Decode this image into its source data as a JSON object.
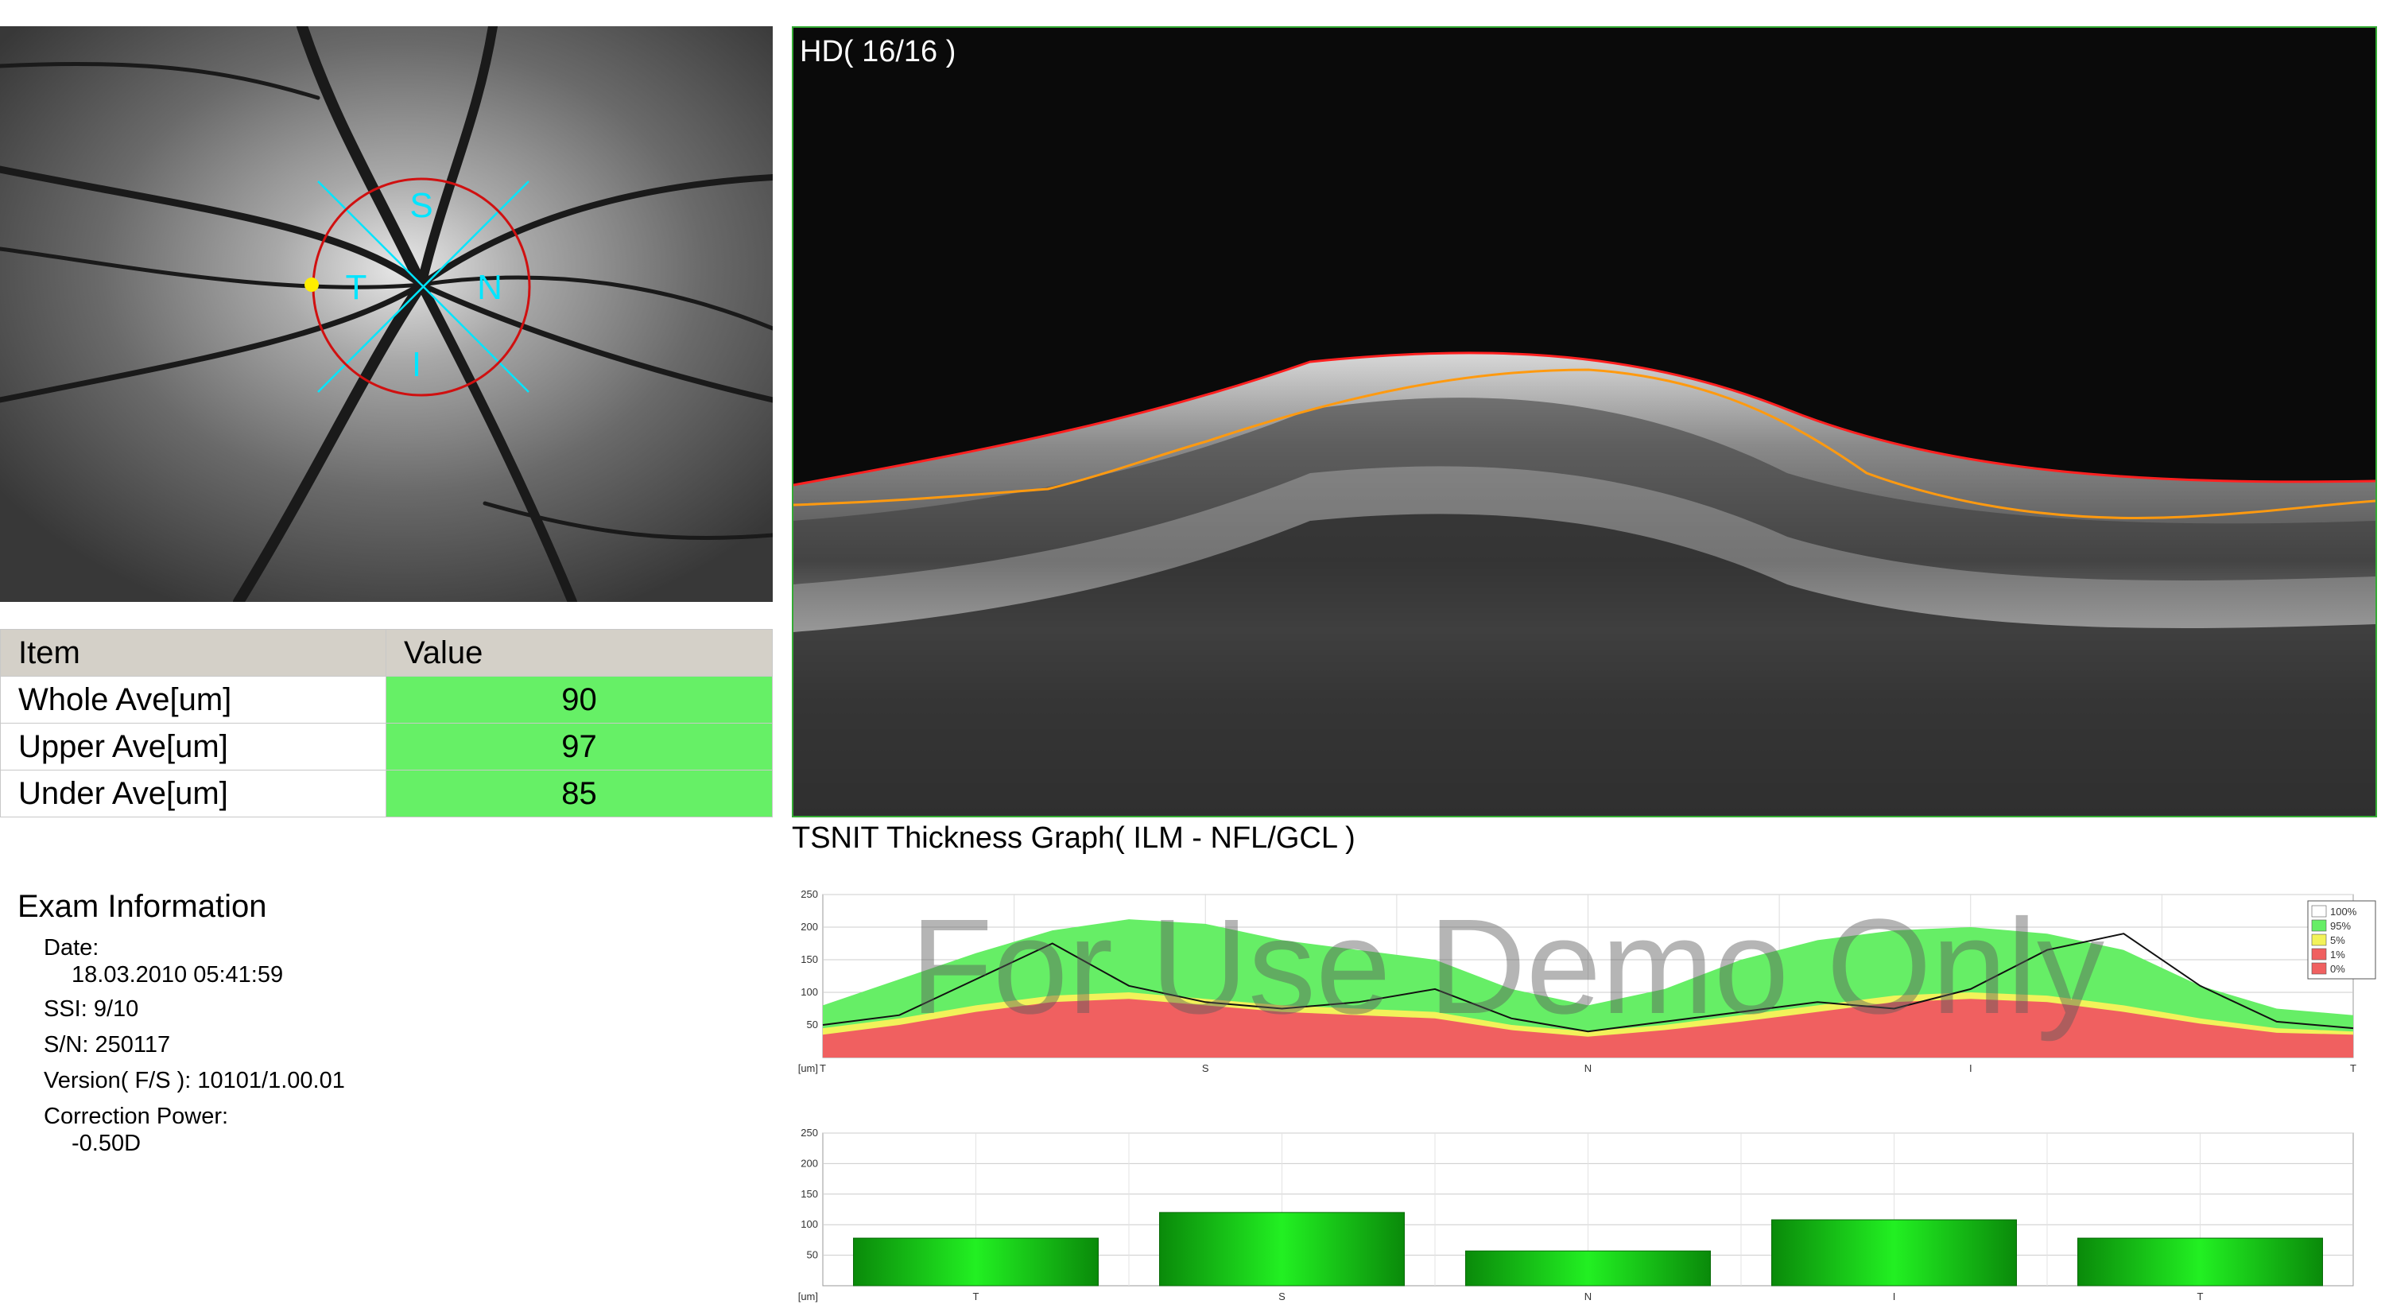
{
  "fundus": {
    "sector_labels": {
      "superior": "S",
      "temporal": "T",
      "nasal": "N",
      "inferior": "I"
    }
  },
  "results_table": {
    "headers": [
      "Item",
      "Value"
    ],
    "rows": [
      {
        "item": "Whole Ave[um]",
        "value": "90"
      },
      {
        "item": "Upper Ave[um]",
        "value": "97"
      },
      {
        "item": "Under Ave[um]",
        "value": "85"
      }
    ],
    "value_color": "#66f066"
  },
  "exam_info": {
    "title": "Exam Information",
    "date_label": "Date:",
    "date_value": "18.03.2010 05:41:59",
    "ssi": "SSI:  9/10",
    "sn": "S/N: 250117",
    "version": "Version( F/S ): 10101/1.00.01",
    "correction_label": "Correction Power:",
    "correction_value": "-0.50D"
  },
  "oct_scan": {
    "label": "HD( 16/16 )"
  },
  "tsnit_title": "TSNIT Thickness Graph( ILM - NFL/GCL )",
  "watermark": "For Use Demo Only",
  "chart_data": [
    {
      "type": "area",
      "unit_label": "[um]",
      "x_ticks": [
        "T",
        "S",
        "N",
        "I",
        "T"
      ],
      "y_ticks": [
        50,
        100,
        150,
        200,
        250
      ],
      "ylim": [
        0,
        250
      ],
      "legend": [
        {
          "name": "100%",
          "color": "#ffffff"
        },
        {
          "name": "95%",
          "color": "#66ee66"
        },
        {
          "name": "5%",
          "color": "#f2f25a"
        },
        {
          "name": "1%",
          "color": "#f06060"
        },
        {
          "name": "0%",
          "color": "#f06060"
        }
      ],
      "x": [
        0,
        0.05,
        0.1,
        0.15,
        0.2,
        0.25,
        0.3,
        0.35,
        0.4,
        0.45,
        0.5,
        0.55,
        0.6,
        0.65,
        0.7,
        0.75,
        0.8,
        0.85,
        0.9,
        0.95,
        1.0
      ],
      "p95": [
        80,
        120,
        160,
        195,
        212,
        205,
        180,
        165,
        150,
        105,
        80,
        105,
        150,
        180,
        195,
        200,
        190,
        165,
        110,
        75,
        65
      ],
      "p5": [
        45,
        60,
        80,
        95,
        100,
        90,
        80,
        75,
        70,
        50,
        40,
        50,
        65,
        80,
        95,
        100,
        95,
        80,
        60,
        45,
        40
      ],
      "p1": [
        35,
        50,
        70,
        85,
        90,
        80,
        70,
        65,
        60,
        42,
        32,
        42,
        55,
        70,
        85,
        90,
        85,
        70,
        52,
        38,
        35
      ],
      "patient": [
        50,
        65,
        120,
        175,
        110,
        85,
        75,
        85,
        105,
        60,
        40,
        55,
        70,
        85,
        75,
        105,
        165,
        190,
        110,
        55,
        45
      ]
    },
    {
      "type": "bar",
      "unit_label": "[um]",
      "categories": [
        "T",
        "S",
        "N",
        "I",
        "T"
      ],
      "values": [
        78,
        120,
        57,
        108,
        78
      ],
      "y_ticks": [
        50,
        100,
        150,
        200,
        250
      ],
      "ylim": [
        0,
        250
      ]
    }
  ]
}
